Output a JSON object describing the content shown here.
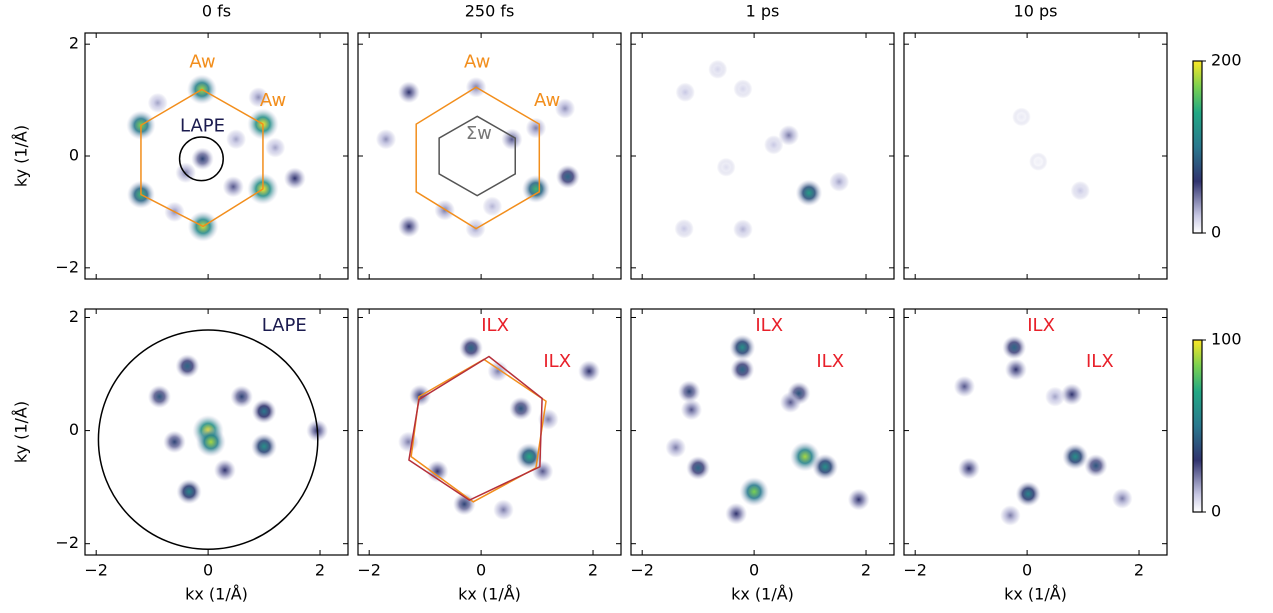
{
  "chart_data": [
    {
      "type": "heatmap",
      "title": "0 fs",
      "ylabel": "ky (1/Å)",
      "xlim": [
        -2.2,
        2.5
      ],
      "ylim": [
        -2.2,
        2.2
      ],
      "clim": [
        0,
        200
      ],
      "xticks": [
        -2,
        0,
        2
      ],
      "yticks": [
        {
          "value": -2,
          "label": "−2"
        },
        0,
        2
      ],
      "show_xticklabels": false,
      "show_yticklabels": true,
      "spots": {
        "x": [
          -0.11,
          0.98,
          0.98,
          -0.09,
          -1.2,
          -1.2,
          -0.1,
          -0.9,
          0.9,
          1.55,
          0.45,
          -0.4,
          0.5,
          -0.6,
          1.2
        ],
        "y": [
          1.19,
          0.57,
          -0.59,
          -1.26,
          -0.69,
          0.55,
          -0.05,
          0.95,
          1.05,
          -0.4,
          -0.55,
          -0.3,
          0.3,
          -1.0,
          0.15
        ],
        "values": [
          180,
          200,
          200,
          190,
          150,
          170,
          70,
          30,
          35,
          60,
          50,
          40,
          30,
          35,
          30
        ]
      },
      "polygons": [
        {
          "color": "#f28e1c",
          "x": [
            -0.11,
            0.98,
            0.98,
            -0.09,
            -1.2,
            -1.2
          ],
          "y": [
            1.19,
            0.57,
            -0.59,
            -1.26,
            -0.69,
            0.55
          ]
        }
      ],
      "circles": [
        {
          "color": "#000000",
          "cx": -0.12,
          "cy": -0.05,
          "r": 0.39
        }
      ],
      "annotations": [
        {
          "text": "Aw",
          "x": -0.1,
          "y": 1.67,
          "color": "#f28e1c"
        },
        {
          "text": "Aw",
          "x": 1.16,
          "y": 0.98,
          "color": "#f28e1c"
        },
        {
          "text": "LAPE",
          "x": -0.1,
          "y": 0.53,
          "color": "#1b1b4f"
        }
      ]
    },
    {
      "type": "heatmap",
      "title": "250 fs",
      "xlim": [
        -2.2,
        2.5
      ],
      "ylim": [
        -2.2,
        2.2
      ],
      "clim": [
        0,
        200
      ],
      "xticks": [
        -2,
        0,
        2
      ],
      "yticks": [
        -2,
        0,
        2
      ],
      "show_xticklabels": false,
      "show_yticklabels": false,
      "spots": {
        "x": [
          0.98,
          1.55,
          -1.29,
          0.55,
          -0.09,
          0.98,
          -1.29,
          -0.65,
          -1.7,
          1.5,
          0.2,
          -0.1
        ],
        "y": [
          -0.59,
          -0.37,
          1.14,
          0.3,
          1.23,
          0.5,
          -1.26,
          -0.97,
          0.3,
          0.85,
          -0.9,
          -1.3
        ],
        "values": [
          150,
          90,
          60,
          50,
          40,
          40,
          60,
          40,
          35,
          35,
          25,
          30
        ]
      },
      "polygons": [
        {
          "color": "#f28e1c",
          "x": [
            -0.09,
            1.04,
            1.04,
            -0.09,
            -1.16,
            -1.16
          ],
          "y": [
            1.23,
            0.57,
            -0.64,
            -1.3,
            -0.64,
            0.57
          ]
        },
        {
          "color": "#555555",
          "x": [
            -0.07,
            0.61,
            0.61,
            -0.07,
            -0.75,
            -0.75
          ],
          "y": [
            0.71,
            0.32,
            -0.32,
            -0.71,
            -0.32,
            0.32
          ]
        }
      ],
      "annotations": [
        {
          "text": "Aw",
          "x": -0.07,
          "y": 1.67,
          "color": "#f28e1c"
        },
        {
          "text": "Aw",
          "x": 1.18,
          "y": 0.98,
          "color": "#f28e1c"
        },
        {
          "text": "Σw",
          "x": -0.04,
          "y": 0.39,
          "color": "#777777"
        }
      ]
    },
    {
      "type": "heatmap",
      "title": "1 ps",
      "xlim": [
        -2.2,
        2.5
      ],
      "ylim": [
        -2.2,
        2.2
      ],
      "clim": [
        0,
        200
      ],
      "xticks": [
        -2,
        0,
        2
      ],
      "yticks": [
        -2,
        0,
        2
      ],
      "show_xticklabels": false,
      "show_yticklabels": false,
      "spots": {
        "x": [
          0.98,
          0.62,
          1.52,
          -1.23,
          -0.2,
          -1.25,
          -0.65,
          -0.2,
          0.35,
          -0.5
        ],
        "y": [
          -0.66,
          0.37,
          -0.46,
          1.14,
          -1.31,
          -1.3,
          1.55,
          1.2,
          0.2,
          -0.2
        ],
        "values": [
          130,
          40,
          30,
          20,
          25,
          20,
          15,
          15,
          20,
          12
        ]
      }
    },
    {
      "type": "heatmap",
      "title": "10 ps",
      "xlim": [
        -2.2,
        2.5
      ],
      "ylim": [
        -2.2,
        2.2
      ],
      "clim": [
        0,
        200
      ],
      "xticks": [
        -2,
        0,
        2
      ],
      "yticks": [
        -2,
        0,
        2
      ],
      "show_xticklabels": false,
      "show_yticklabels": false,
      "spots": {
        "x": [
          0.95,
          -0.1,
          0.2
        ],
        "y": [
          -0.62,
          0.7,
          -0.1
        ],
        "values": [
          20,
          8,
          6
        ]
      }
    },
    {
      "type": "heatmap",
      "xlabel": "kx (1/Å)",
      "ylabel": "ky (1/Å)",
      "xlim": [
        -2.2,
        2.5
      ],
      "ylim": [
        -2.2,
        2.15
      ],
      "clim": [
        0,
        100
      ],
      "xticks": [
        {
          "value": -2,
          "label": "−2"
        },
        0,
        2
      ],
      "yticks": [
        {
          "value": -2,
          "label": "−2"
        },
        0,
        2
      ],
      "show_xticklabels": true,
      "show_yticklabels": true,
      "spots": {
        "x": [
          0,
          0.05,
          1,
          1,
          -0.34,
          -0.37,
          -0.87,
          1.95,
          0.6,
          -0.6,
          0.3
        ],
        "y": [
          0,
          -0.2,
          -0.28,
          0.34,
          -1.08,
          1.14,
          0.6,
          0,
          0.6,
          -0.2,
          -0.7
        ],
        "values": [
          100,
          90,
          60,
          50,
          55,
          45,
          40,
          30,
          35,
          35,
          30
        ]
      },
      "circles": [
        {
          "color": "#000000",
          "cx": 0,
          "cy": -0.16,
          "r": 1.96
        }
      ],
      "annotations": [
        {
          "text": "LAPE",
          "x": 1.36,
          "y": 1.85,
          "color": "#1b1b4f"
        }
      ]
    },
    {
      "type": "heatmap",
      "xlabel": "kx (1/Å)",
      "xlim": [
        -2.2,
        2.5
      ],
      "ylim": [
        -2.2,
        2.15
      ],
      "clim": [
        0,
        100
      ],
      "xticks": [
        {
          "value": -2,
          "label": "−2"
        },
        0,
        2
      ],
      "yticks": [
        -2,
        0,
        2
      ],
      "show_xticklabels": true,
      "show_yticklabels": false,
      "spots": {
        "x": [
          0.86,
          -0.18,
          0.71,
          -0.3,
          1.93,
          -1.09,
          -0.78,
          1.1,
          0.3,
          -1.3,
          1.2,
          0.4
        ],
        "y": [
          -0.46,
          1.46,
          0.39,
          -1.3,
          1.05,
          0.62,
          -0.72,
          -0.72,
          1.05,
          -0.2,
          0.2,
          -1.4
        ],
        "values": [
          70,
          45,
          40,
          35,
          30,
          30,
          30,
          25,
          20,
          20,
          20,
          20
        ]
      },
      "polygons": [
        {
          "color": "#f28e1c",
          "x": [
            0.05,
            1.16,
            0.98,
            -0.14,
            -1.25,
            -1.11
          ],
          "y": [
            1.26,
            0.52,
            -0.66,
            -1.26,
            -0.46,
            0.6
          ]
        },
        {
          "color": "#b5303a",
          "x": [
            0.14,
            1.09,
            1.05,
            -0.21,
            -1.29,
            -1.11
          ],
          "y": [
            1.31,
            0.57,
            -0.64,
            -1.23,
            -0.52,
            0.55
          ]
        }
      ],
      "annotations": [
        {
          "text": "ILX",
          "x": 0.25,
          "y": 1.85,
          "color": "#e8202a"
        },
        {
          "text": "ILX",
          "x": 1.36,
          "y": 1.21,
          "color": "#e8202a"
        }
      ]
    },
    {
      "type": "heatmap",
      "xlabel": "kx (1/Å)",
      "xlim": [
        -2.2,
        2.5
      ],
      "ylim": [
        -2.2,
        2.15
      ],
      "clim": [
        0,
        100
      ],
      "xticks": [
        {
          "value": -2,
          "label": "−2"
        },
        0,
        2
      ],
      "yticks": [
        -2,
        0,
        2
      ],
      "show_xticklabels": true,
      "show_yticklabels": false,
      "spots": {
        "x": [
          -0.21,
          -0.21,
          0.91,
          1.27,
          0,
          -1,
          0.8,
          -1.16,
          -0.32,
          1.87,
          -1.12,
          0.65,
          -1.4
        ],
        "y": [
          1.47,
          1.08,
          -0.46,
          -0.64,
          -1.08,
          -0.66,
          0.66,
          0.69,
          -1.47,
          -1.22,
          0.37,
          0.5,
          -0.3
        ],
        "values": [
          60,
          45,
          90,
          60,
          85,
          45,
          40,
          35,
          30,
          30,
          25,
          25,
          20
        ]
      },
      "annotations": [
        {
          "text": "ILX",
          "x": 0.27,
          "y": 1.85,
          "color": "#e8202a"
        },
        {
          "text": "ILX",
          "x": 1.36,
          "y": 1.21,
          "color": "#e8202a"
        }
      ]
    },
    {
      "type": "heatmap",
      "xlabel": "kx (1/Å)",
      "xlim": [
        -2.2,
        2.5
      ],
      "ylim": [
        -2.2,
        2.15
      ],
      "clim": [
        0,
        100
      ],
      "xticks": [
        {
          "value": -2,
          "label": "−2"
        },
        0,
        2
      ],
      "yticks": [
        -2,
        0,
        2
      ],
      "show_xticklabels": true,
      "show_yticklabels": false,
      "spots": {
        "x": [
          -0.23,
          -0.2,
          0.86,
          1.23,
          0.02,
          -1.04,
          0.8,
          -1.12,
          -0.3,
          1.7,
          0.5
        ],
        "y": [
          1.47,
          1.08,
          -0.46,
          -0.62,
          -1.12,
          -0.67,
          0.64,
          0.78,
          -1.5,
          -1.2,
          0.6
        ],
        "values": [
          45,
          30,
          60,
          40,
          55,
          30,
          30,
          25,
          20,
          20,
          15
        ]
      },
      "annotations": [
        {
          "text": "ILX",
          "x": 0.25,
          "y": 1.85,
          "color": "#e8202a"
        },
        {
          "text": "ILX",
          "x": 1.3,
          "y": 1.21,
          "color": "#e8202a"
        }
      ]
    },
    {
      "type": "colorbar",
      "ylim": [
        0,
        200
      ],
      "yticks": [
        0,
        200
      ]
    },
    {
      "type": "colorbar",
      "ylim": [
        0,
        100
      ],
      "yticks": [
        0,
        100
      ]
    }
  ]
}
